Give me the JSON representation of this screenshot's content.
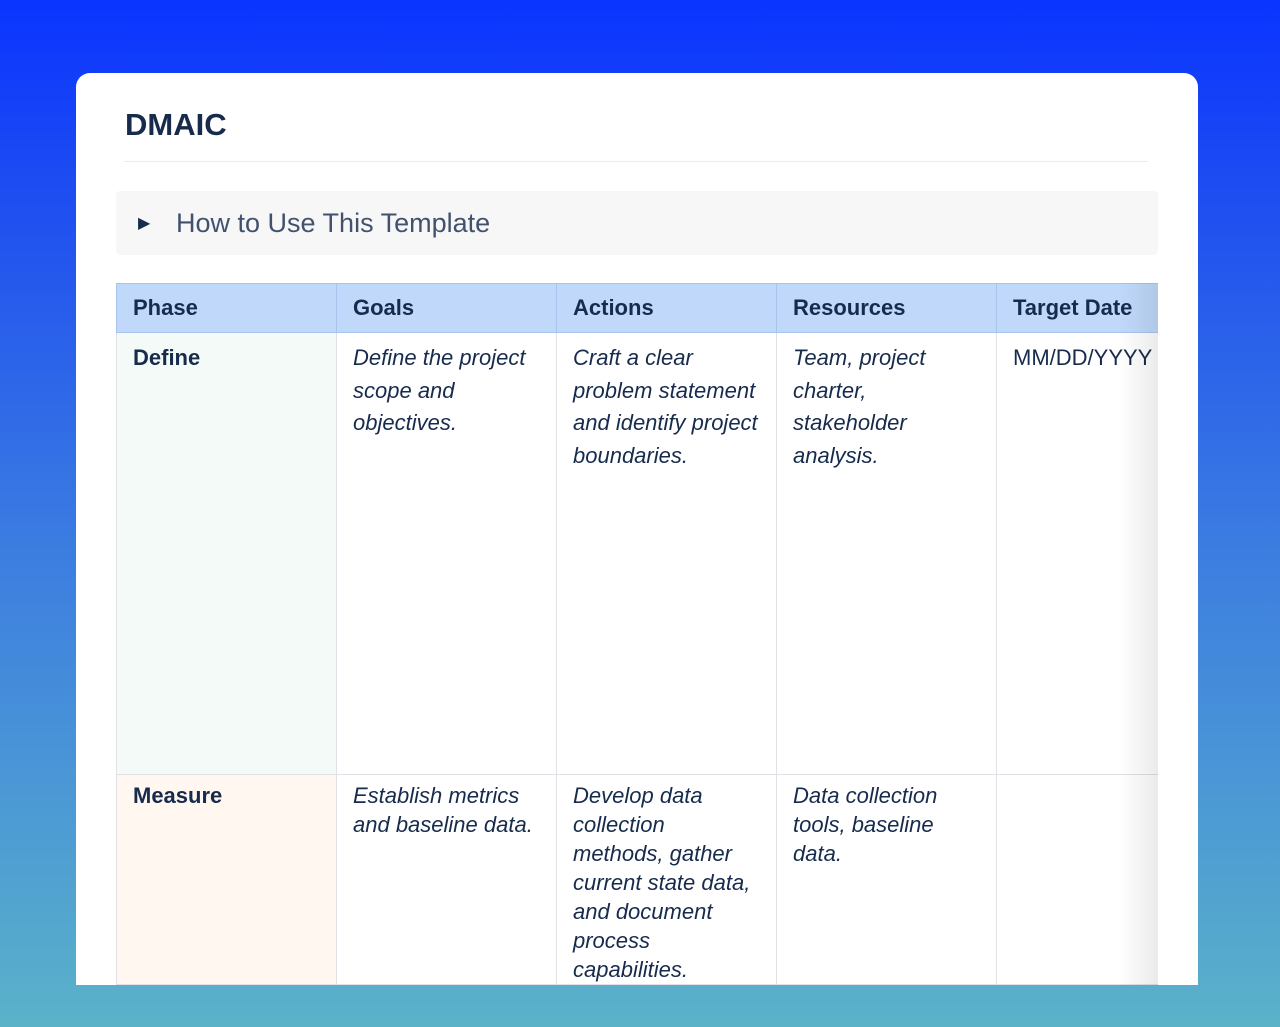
{
  "page": {
    "title": "DMAIC",
    "expand_label": "How to Use This Template"
  },
  "colors": {
    "header": "#c0d9fb",
    "define": "#f3faf7",
    "measure": "#fff7f0"
  },
  "table": {
    "headers": [
      "Phase",
      "Goals",
      "Actions",
      "Resources",
      "Target Date"
    ],
    "rows": [
      {
        "phase": "Define",
        "goals": "Define the project scope and objectives.",
        "actions": "Craft a clear problem statement and identify project boundaries.",
        "resources": "Team, project charter, stakeholder analysis.",
        "date": "MM/DD/YYYY"
      },
      {
        "phase": "Measure",
        "goals": "Establish metrics and baseline data.",
        "actions": "Develop data collection methods, gather current state data, and document process capabilities.",
        "resources": "Data collection tools, baseline data.",
        "date": ""
      }
    ]
  }
}
